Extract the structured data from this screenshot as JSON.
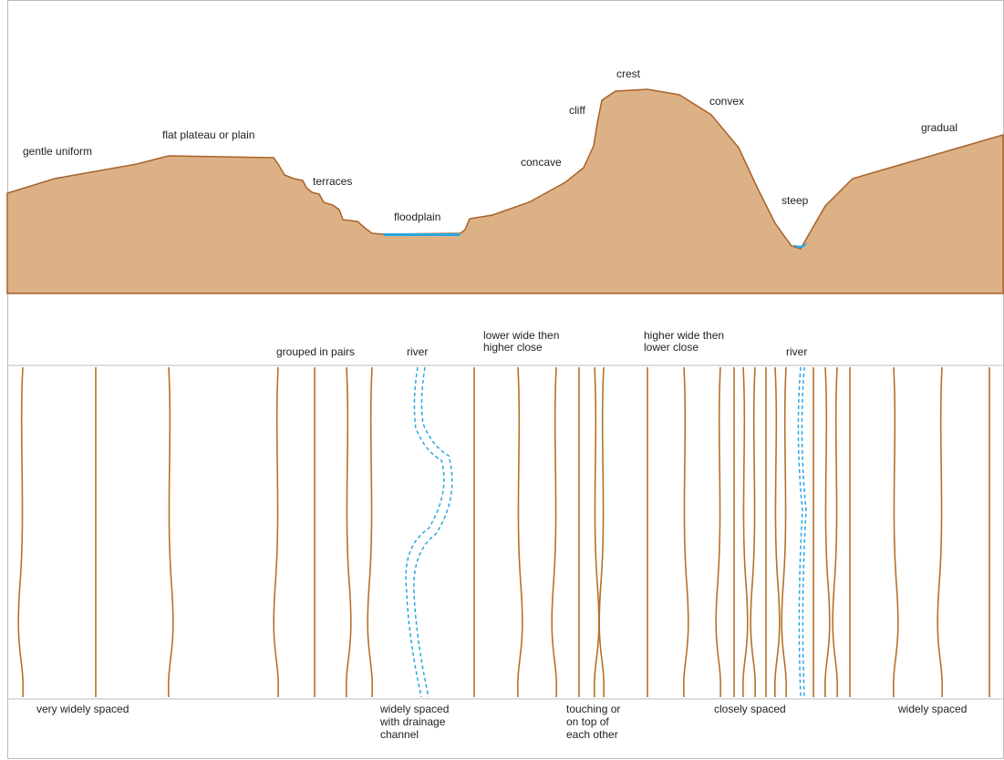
{
  "profile": {
    "labels": [
      "gentle uniform",
      "flat plateau or plain",
      "terraces",
      "floodplain",
      "concave",
      "cliff",
      "crest",
      "convex",
      "steep",
      "gradual"
    ]
  },
  "contours": {
    "top_labels": [
      [
        "grouped in pairs"
      ],
      [
        "river"
      ],
      [
        "lower wide then",
        "higher close"
      ],
      [
        "higher wide then",
        "lower close"
      ],
      [
        "river"
      ]
    ],
    "bottom_labels": [
      [
        "very widely spaced"
      ],
      [
        "widely spaced",
        "with drainage",
        "channel"
      ],
      [
        "touching or",
        "on top of",
        "each other"
      ],
      [
        "closely spaced"
      ],
      [
        "widely spaced"
      ]
    ]
  }
}
